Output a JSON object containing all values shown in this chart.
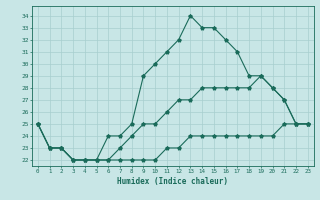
{
  "xlabel": "Humidex (Indice chaleur)",
  "background_color": "#c8e6e6",
  "line_color": "#1a6b5a",
  "grid_color": "#a8cece",
  "spine_color": "#1a6b5a",
  "xlim": [
    -0.5,
    23.5
  ],
  "ylim": [
    21.5,
    34.8
  ],
  "yticks": [
    22,
    23,
    24,
    25,
    26,
    27,
    28,
    29,
    30,
    31,
    32,
    33,
    34
  ],
  "xticks": [
    0,
    1,
    2,
    3,
    4,
    5,
    6,
    7,
    8,
    9,
    10,
    11,
    12,
    13,
    14,
    15,
    16,
    17,
    18,
    19,
    20,
    21,
    22,
    23
  ],
  "line1_x": [
    0,
    1,
    2,
    3,
    4,
    5,
    6,
    7,
    8,
    9,
    10,
    11,
    12,
    13,
    14,
    15,
    16,
    17,
    18,
    19,
    20,
    21,
    22,
    23
  ],
  "line1_y": [
    25,
    23,
    23,
    22,
    22,
    22,
    24,
    24,
    25,
    29,
    30,
    31,
    32,
    34,
    33,
    33,
    32,
    31,
    29,
    29,
    28,
    27,
    25,
    25
  ],
  "line2_x": [
    0,
    1,
    2,
    3,
    4,
    5,
    6,
    7,
    8,
    9,
    10,
    11,
    12,
    13,
    14,
    15,
    16,
    17,
    18,
    19,
    20,
    21,
    22,
    23
  ],
  "line2_y": [
    25,
    23,
    23,
    22,
    22,
    22,
    22,
    23,
    24,
    25,
    25,
    26,
    27,
    27,
    28,
    28,
    28,
    28,
    28,
    29,
    28,
    27,
    25,
    25
  ],
  "line3_x": [
    0,
    1,
    2,
    3,
    4,
    5,
    6,
    7,
    8,
    9,
    10,
    11,
    12,
    13,
    14,
    15,
    16,
    17,
    18,
    19,
    20,
    21,
    22,
    23
  ],
  "line3_y": [
    25,
    23,
    23,
    22,
    22,
    22,
    22,
    22,
    22,
    22,
    22,
    23,
    23,
    24,
    24,
    24,
    24,
    24,
    24,
    24,
    24,
    25,
    25,
    25
  ]
}
